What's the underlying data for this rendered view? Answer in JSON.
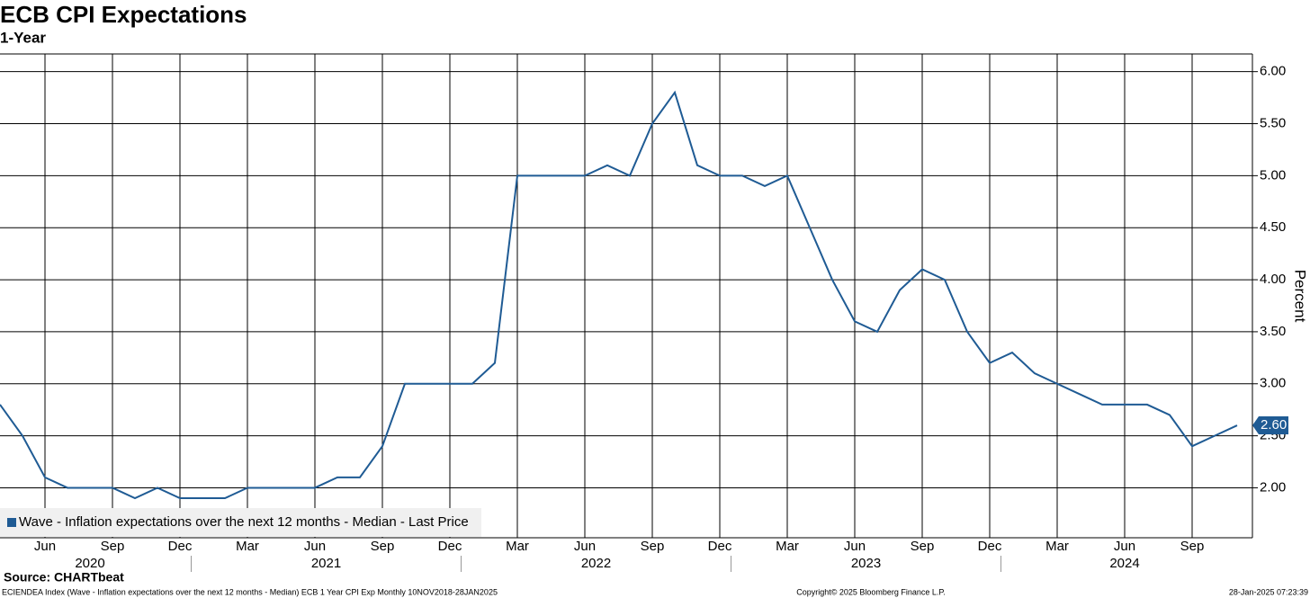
{
  "chart_data": {
    "type": "line",
    "title": "ECB CPI Expectations",
    "subtitle": "1-Year",
    "y_axis_label": "Percent",
    "source": "Source: CHARTbeat",
    "footer_left": "ECIENDEA Index (Wave - Inflation expectations over the next 12 months - Median) ECB 1 Year CPI Exp  Monthly 10NOV2018-28JAN2025",
    "footer_center": "Copyright© 2025 Bloomberg Finance L.P.",
    "footer_right": "28-Jan-2025 07:23:39",
    "categories": [
      "2020-04",
      "2020-05",
      "2020-06",
      "2020-07",
      "2020-08",
      "2020-09",
      "2020-10",
      "2020-11",
      "2020-12",
      "2021-01",
      "2021-02",
      "2021-03",
      "2021-04",
      "2021-05",
      "2021-06",
      "2021-07",
      "2021-08",
      "2021-09",
      "2021-10",
      "2021-11",
      "2021-12",
      "2022-01",
      "2022-02",
      "2022-03",
      "2022-04",
      "2022-05",
      "2022-06",
      "2022-07",
      "2022-08",
      "2022-09",
      "2022-10",
      "2022-11",
      "2022-12",
      "2023-01",
      "2023-02",
      "2023-03",
      "2023-04",
      "2023-05",
      "2023-06",
      "2023-07",
      "2023-08",
      "2023-09",
      "2023-10",
      "2023-11",
      "2023-12",
      "2024-01",
      "2024-02",
      "2024-03",
      "2024-04",
      "2024-05",
      "2024-06",
      "2024-07",
      "2024-08",
      "2024-09",
      "2024-10",
      "2024-11"
    ],
    "series": [
      {
        "name": "Wave - Inflation expectations over the next 12 months - Median - Last Price",
        "color": "#1f5b94",
        "values": [
          2.8,
          2.5,
          2.1,
          2.0,
          2.0,
          2.0,
          1.9,
          2.0,
          1.9,
          1.9,
          1.9,
          2.0,
          2.0,
          2.0,
          2.0,
          2.1,
          2.1,
          2.4,
          3.0,
          3.0,
          3.0,
          3.0,
          3.2,
          5.0,
          5.0,
          5.0,
          5.0,
          5.1,
          5.0,
          5.5,
          5.8,
          5.1,
          5.0,
          5.0,
          4.9,
          5.0,
          4.5,
          4.0,
          3.6,
          3.5,
          3.9,
          4.1,
          4.0,
          3.5,
          3.2,
          3.3,
          3.1,
          3.0,
          2.9,
          2.8,
          2.8,
          2.8,
          2.7,
          2.4,
          2.5,
          2.6
        ],
        "last_label": "2.60"
      }
    ],
    "xticks": [
      {
        "value": "2020-06",
        "label": "Jun"
      },
      {
        "value": "2020-09",
        "label": "Sep"
      },
      {
        "value": "2020-12",
        "label": "Dec"
      },
      {
        "value": "2021-03",
        "label": "Mar"
      },
      {
        "value": "2021-06",
        "label": "Jun"
      },
      {
        "value": "2021-09",
        "label": "Sep"
      },
      {
        "value": "2021-12",
        "label": "Dec"
      },
      {
        "value": "2022-03",
        "label": "Mar"
      },
      {
        "value": "2022-06",
        "label": "Jun"
      },
      {
        "value": "2022-09",
        "label": "Sep"
      },
      {
        "value": "2022-12",
        "label": "Dec"
      },
      {
        "value": "2023-03",
        "label": "Mar"
      },
      {
        "value": "2023-06",
        "label": "Jun"
      },
      {
        "value": "2023-09",
        "label": "Sep"
      },
      {
        "value": "2023-12",
        "label": "Dec"
      },
      {
        "value": "2024-03",
        "label": "Mar"
      },
      {
        "value": "2024-06",
        "label": "Jun"
      },
      {
        "value": "2024-09",
        "label": "Sep"
      }
    ],
    "year_labels": [
      2020,
      2021,
      2022,
      2023,
      2024
    ],
    "ylim": [
      1.52,
      6.17
    ],
    "yticks": [
      {
        "value": 2,
        "label": "2.00"
      },
      {
        "value": 2.5,
        "label": "2.50"
      },
      {
        "value": 3,
        "label": "3.00"
      },
      {
        "value": 3.5,
        "label": "3.50"
      },
      {
        "value": 4,
        "label": "4.00"
      },
      {
        "value": 4.5,
        "label": "4.50"
      },
      {
        "value": 5,
        "label": "5.00"
      },
      {
        "value": 5.5,
        "label": "5.50"
      },
      {
        "value": 6,
        "label": "6.00"
      }
    ],
    "grid": true,
    "legend": "lower left"
  }
}
